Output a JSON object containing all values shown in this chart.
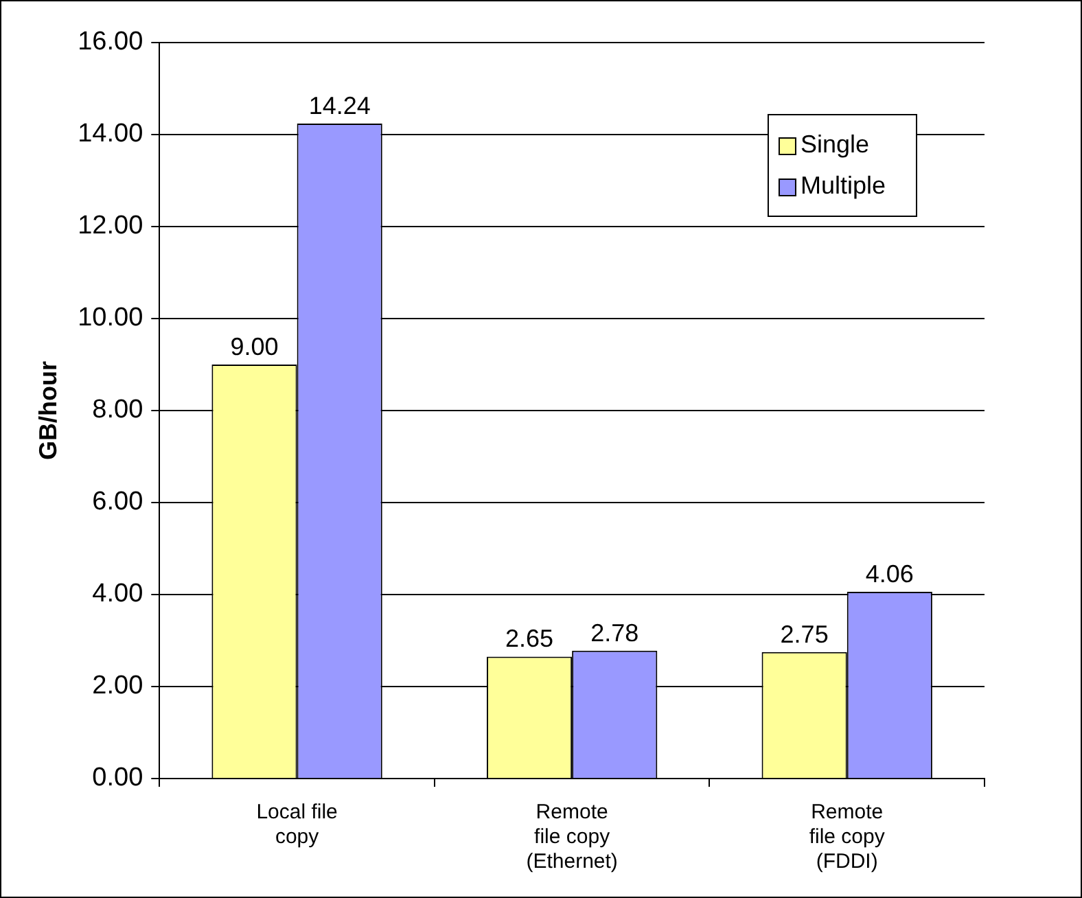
{
  "chart_data": {
    "type": "bar",
    "ylabel": "GB/hour",
    "categories": [
      "Local file copy",
      "Remote file copy (Ethernet)",
      "Remote file copy (FDDI)"
    ],
    "series": [
      {
        "name": "Single",
        "color": "#ffff99",
        "values": [
          9.0,
          2.65,
          2.75
        ],
        "value_labels": [
          "9.00",
          "2.65",
          "2.75"
        ]
      },
      {
        "name": "Multiple",
        "color": "#9999ff",
        "values": [
          14.24,
          2.78,
          4.06
        ],
        "value_labels": [
          "14.24",
          "2.78",
          "4.06"
        ]
      }
    ],
    "ylim": [
      0,
      16
    ],
    "yticks": [
      {
        "value": 0,
        "label": "0.00"
      },
      {
        "value": 2,
        "label": "2.00"
      },
      {
        "value": 4,
        "label": "4.00"
      },
      {
        "value": 6,
        "label": "6.00"
      },
      {
        "value": 8,
        "label": "8.00"
      },
      {
        "value": 10,
        "label": "10.00"
      },
      {
        "value": 12,
        "label": "12.00"
      },
      {
        "value": 14,
        "label": "14.00"
      },
      {
        "value": 16,
        "label": "16.00"
      }
    ],
    "grid": "y",
    "legend": "top right"
  }
}
